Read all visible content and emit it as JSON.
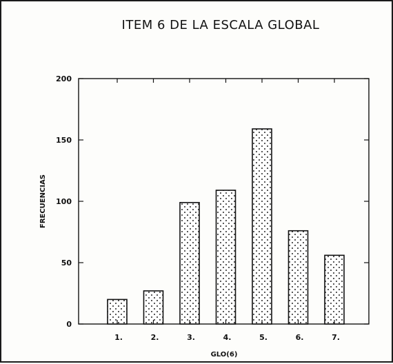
{
  "chart_data": {
    "type": "bar",
    "title": "ITEM 6 DE LA ESCALA GLOBAL",
    "xlabel": "GLO(6)",
    "ylabel": "FRECUENCIAS",
    "categories": [
      "1.",
      "2.",
      "3.",
      "4.",
      "5.",
      "6.",
      "7."
    ],
    "values": [
      20,
      27,
      99,
      109,
      159,
      76,
      56
    ],
    "ylim": [
      0,
      200
    ],
    "yticks": [
      0,
      50,
      100,
      150,
      200
    ],
    "grid": false,
    "legend": "none",
    "bar_fill": "dotted pattern",
    "colors": {
      "ink": "#111111",
      "background": "#fdfdfb"
    }
  }
}
